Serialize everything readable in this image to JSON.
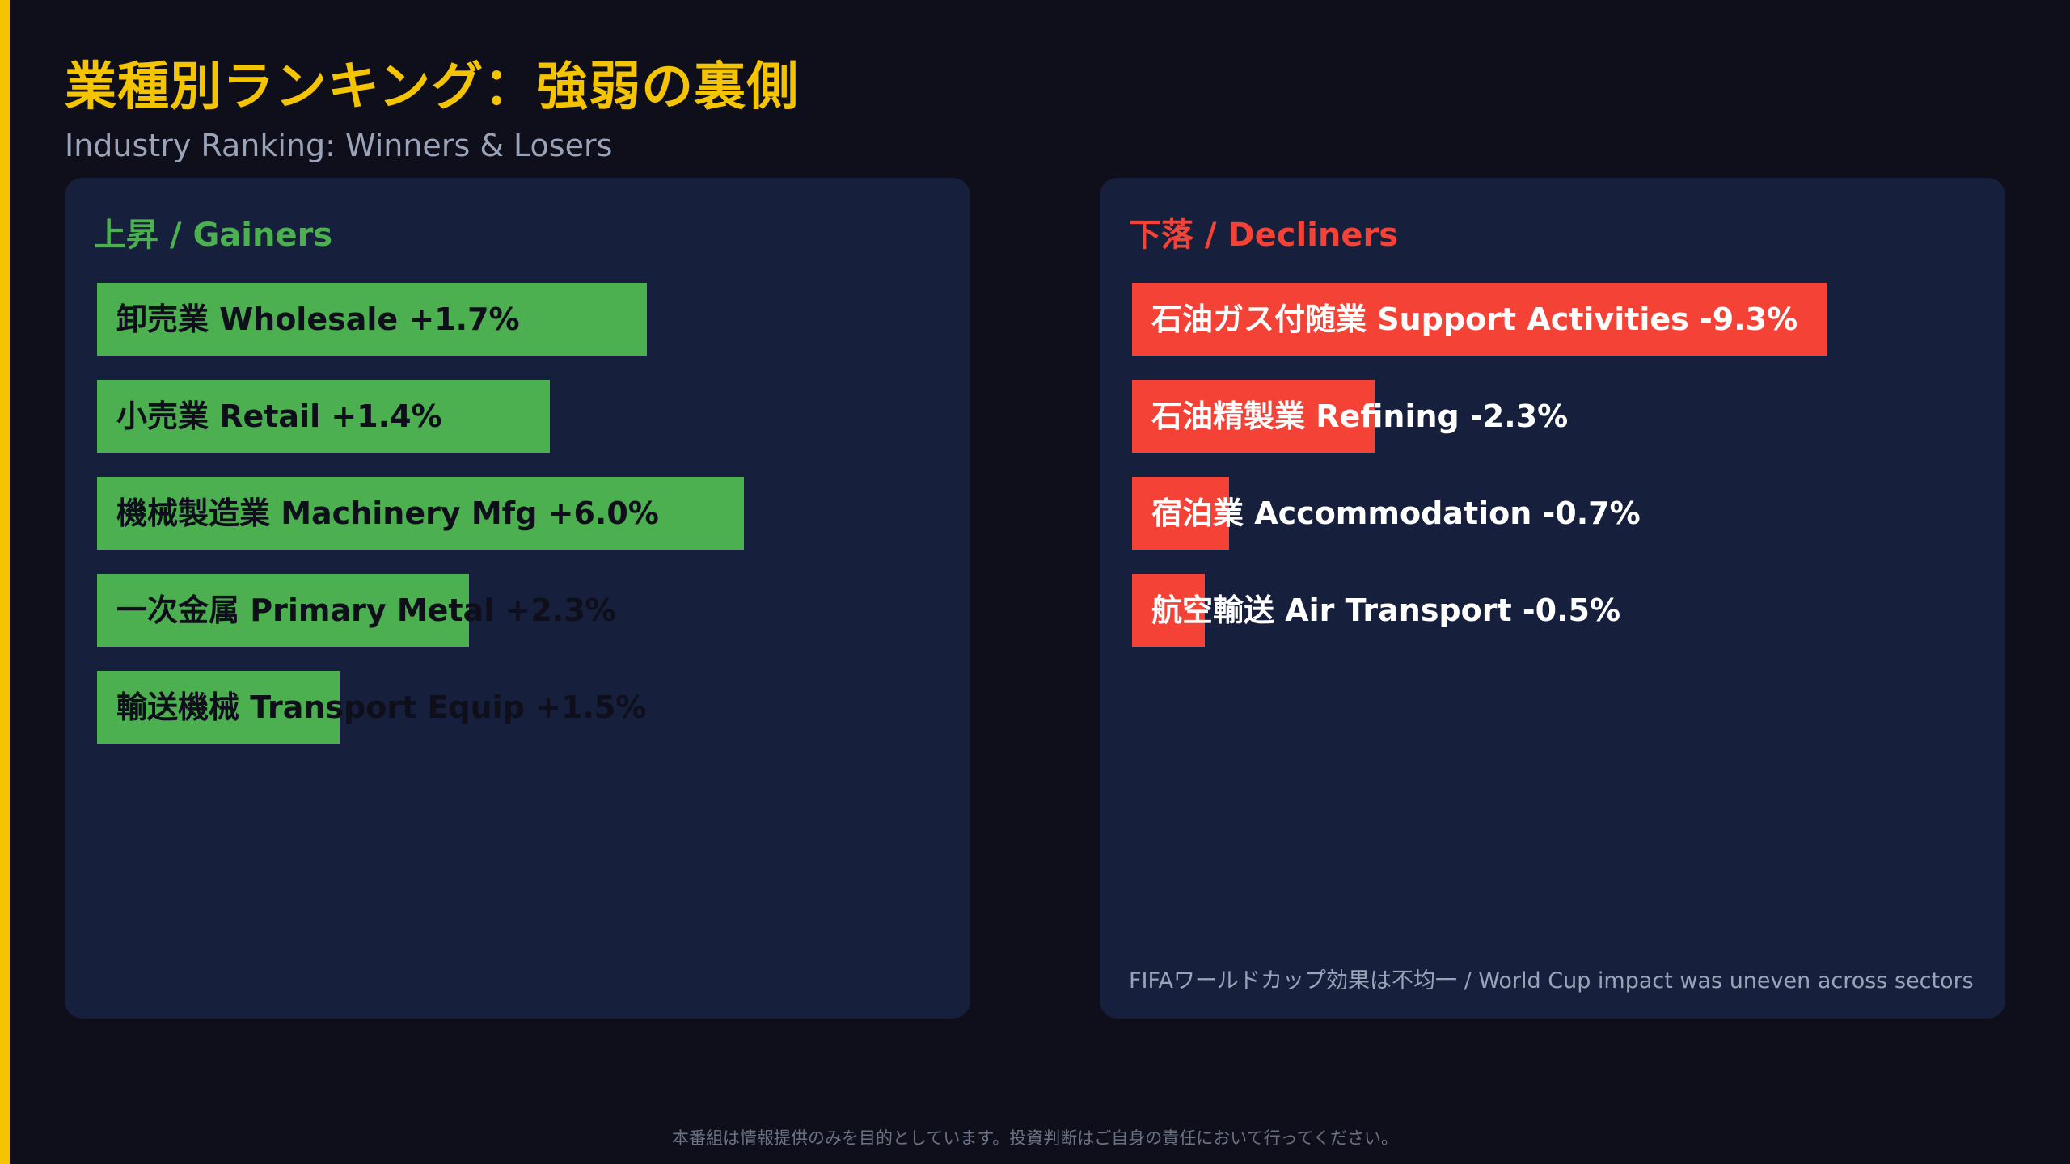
{
  "header": {
    "title": "業種別ランキング：強弱の裏側",
    "subtitle": "Industry Ranking: Winners & Losers"
  },
  "colors": {
    "accent": "#f5c400",
    "gain": "#4caf50",
    "decline": "#f44336",
    "panel": "#161f3b",
    "background": "#0e0f1a"
  },
  "chart_data": [
    {
      "type": "bar",
      "orientation": "horizontal",
      "title": "上昇 / Gainers",
      "categories": [
        "卸売業 Wholesale",
        "小売業 Retail",
        "機械製造業 Machinery Mfg",
        "一次金属 Primary Metal",
        "輸送機械 Transport Equip"
      ],
      "values": [
        1.7,
        1.4,
        6.0,
        2.3,
        1.5
      ],
      "labels": [
        "卸売業 Wholesale +1.7%",
        "小売業 Retail +1.4%",
        "機械製造業 Machinery Mfg +6.0%",
        "一次金属 Primary Metal +2.3%",
        "輸送機械 Transport Equip +1.5%"
      ],
      "bar_share": [
        0.425,
        0.35,
        0.5,
        0.2875,
        0.1875
      ],
      "unit": "%"
    },
    {
      "type": "bar",
      "orientation": "horizontal",
      "title": "下落 / Decliners",
      "categories": [
        "石油ガス付随業 Support Activities",
        "石油精製業 Refining",
        "宿泊業 Accommodation",
        "航空輸送 Air Transport"
      ],
      "values": [
        -9.3,
        -2.3,
        -0.7,
        -0.5
      ],
      "labels": [
        "石油ガス付随業 Support Activities -9.3%",
        "石油精製業 Refining -2.3%",
        "宿泊業 Accommodation -0.7%",
        "航空輸送 Air Transport -0.5%"
      ],
      "bar_share": [
        0.5375,
        0.1875,
        0.075,
        0.0563
      ],
      "unit": "%"
    }
  ],
  "note": "FIFAワールドカップ効果は不均一 / World Cup impact was uneven across sectors",
  "disclaimer": "本番組は情報提供のみを目的としています。投資判断はご自身の責任において行ってください。"
}
